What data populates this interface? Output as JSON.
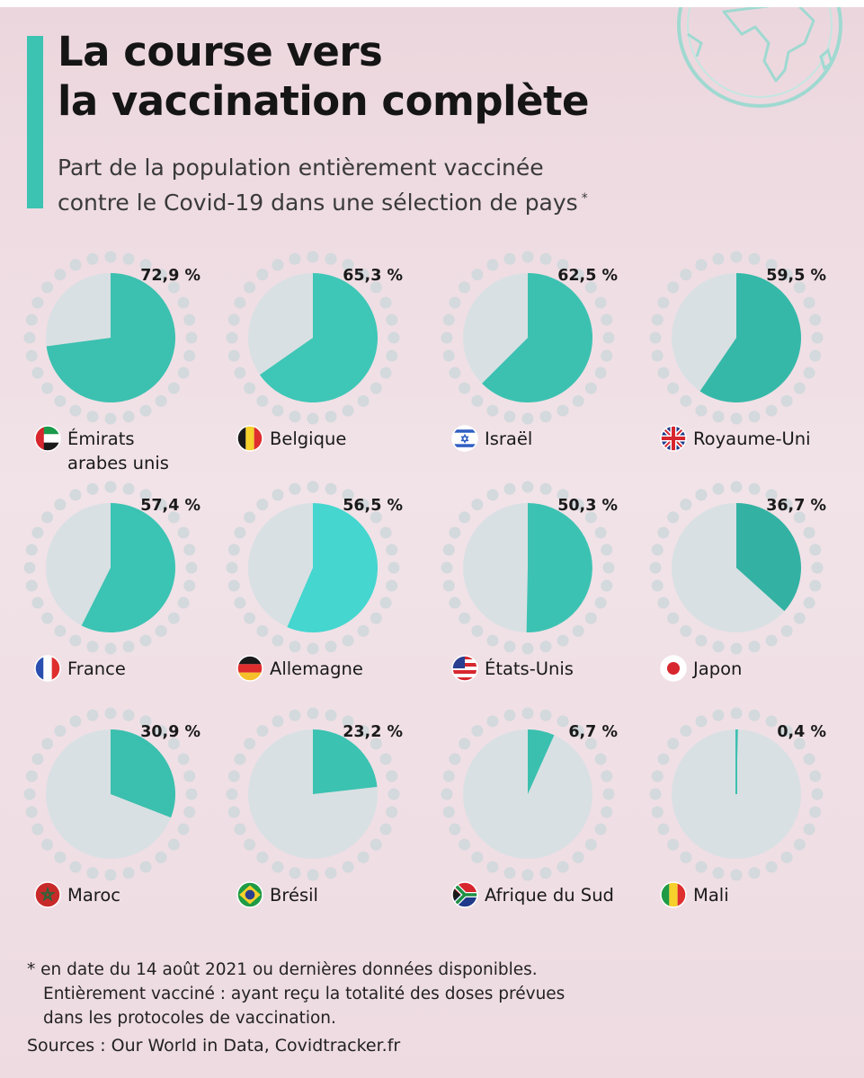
{
  "header": {
    "title_lines": [
      "La course vers",
      "la vaccination complète"
    ],
    "subtitle_lines": [
      "Part de la population entièrement vaccinée",
      "contre le Covid-19 dans une sélection de pays"
    ],
    "subtitle_marker": "*"
  },
  "chart_data": {
    "type": "pie",
    "unit": "%",
    "title": "La course vers la vaccination complète",
    "subtitle": "Part de la population entièrement vaccinée contre le Covid-19 dans une sélection de pays",
    "series": [
      {
        "name": "Émirats arabes unis",
        "value": 72.9,
        "label": "72,9 %",
        "name_lines": [
          "Émirats",
          "arabes unis"
        ],
        "flag": "uae-flag-icon",
        "shade": "#3cc0b0"
      },
      {
        "name": "Belgique",
        "value": 65.3,
        "label": "65,3 %",
        "name_lines": [
          "Belgique"
        ],
        "flag": "belgium-flag-icon",
        "shade": "#3ec6b6"
      },
      {
        "name": "Israël",
        "value": 62.5,
        "label": "62,5 %",
        "name_lines": [
          "Israël"
        ],
        "flag": "israel-flag-icon",
        "shade": "#3cc1b1"
      },
      {
        "name": "Royaume-Uni",
        "value": 59.5,
        "label": "59,5 %",
        "name_lines": [
          "Royaume-Uni"
        ],
        "flag": "uk-flag-icon",
        "shade": "#35b8a8"
      },
      {
        "name": "France",
        "value": 57.4,
        "label": "57,4 %",
        "name_lines": [
          "France"
        ],
        "flag": "france-flag-icon",
        "shade": "#3bc3b3"
      },
      {
        "name": "Allemagne",
        "value": 56.5,
        "label": "56,5 %",
        "name_lines": [
          "Allemagne"
        ],
        "flag": "germany-flag-icon",
        "shade": "#44d6cf"
      },
      {
        "name": "États-Unis",
        "value": 50.3,
        "label": "50,3 %",
        "name_lines": [
          "États-Unis"
        ],
        "flag": "usa-flag-icon",
        "shade": "#3cc2b2"
      },
      {
        "name": "Japon",
        "value": 36.7,
        "label": "36,7 %",
        "name_lines": [
          "Japon"
        ],
        "flag": "japan-flag-icon",
        "shade": "#33b2a3"
      },
      {
        "name": "Maroc",
        "value": 30.9,
        "label": "30,9 %",
        "name_lines": [
          "Maroc"
        ],
        "flag": "morocco-flag-icon",
        "shade": "#3bbfae"
      },
      {
        "name": "Brésil",
        "value": 23.2,
        "label": "23,2 %",
        "name_lines": [
          "Brésil"
        ],
        "flag": "brazil-flag-icon",
        "shade": "#3bc2b1"
      },
      {
        "name": "Afrique du Sud",
        "value": 6.7,
        "label": "6,7 %",
        "name_lines": [
          "Afrique du Sud"
        ],
        "flag": "south-africa-flag-icon",
        "shade": "#3bc0b0"
      },
      {
        "name": "Mali",
        "value": 0.4,
        "label": "0,4 %",
        "name_lines": [
          "Mali"
        ],
        "flag": "mali-flag-icon",
        "shade": "#3cc0b0"
      }
    ],
    "remainder_color": "#d9e0e3",
    "dot_color": "#d3d9dc"
  },
  "footnote": {
    "lines": [
      "* en date du 14 août 2021 ou dernières données disponibles.",
      "Entièrement vacciné : ayant reçu la totalité des doses prévues",
      "dans les protocoles de vaccination."
    ],
    "sources": "Sources : Our World in Data, Covidtracker.fr"
  },
  "colors": {
    "accent": "#3cc3b2",
    "background": "#eedbe2"
  }
}
